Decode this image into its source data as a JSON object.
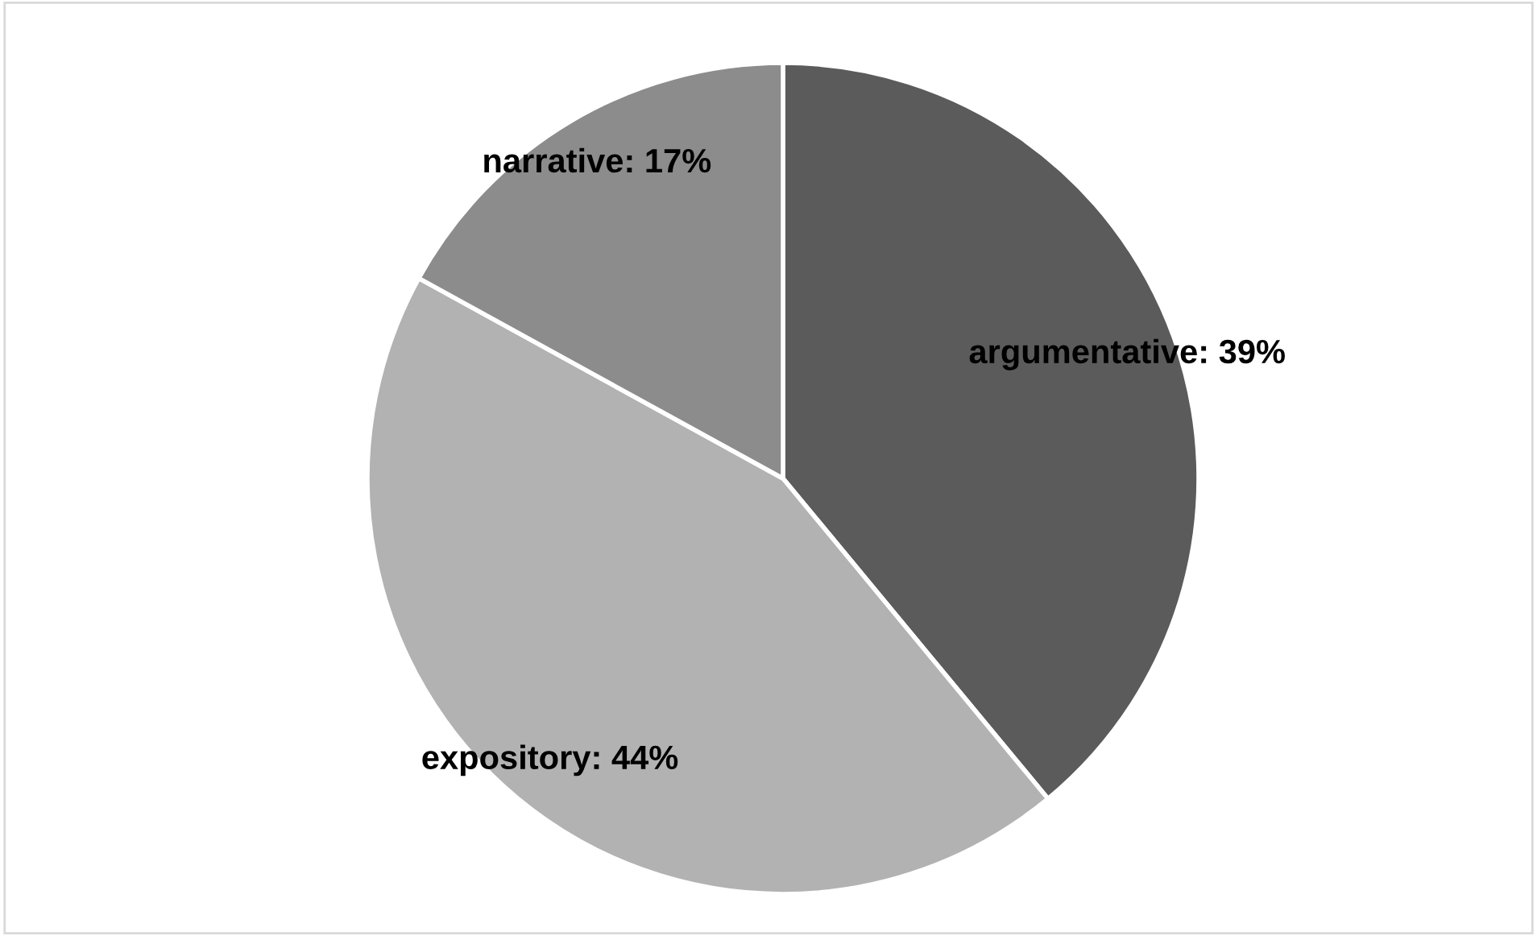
{
  "chart_data": {
    "type": "pie",
    "categories": [
      "argumentative",
      "expository",
      "narrative"
    ],
    "values": [
      39,
      44,
      17
    ],
    "colors": [
      "#5b5b5b",
      "#b2b2b2",
      "#8c8c8c"
    ],
    "value_labels": [
      "39%",
      "44%",
      "17%"
    ],
    "legend": false
  }
}
